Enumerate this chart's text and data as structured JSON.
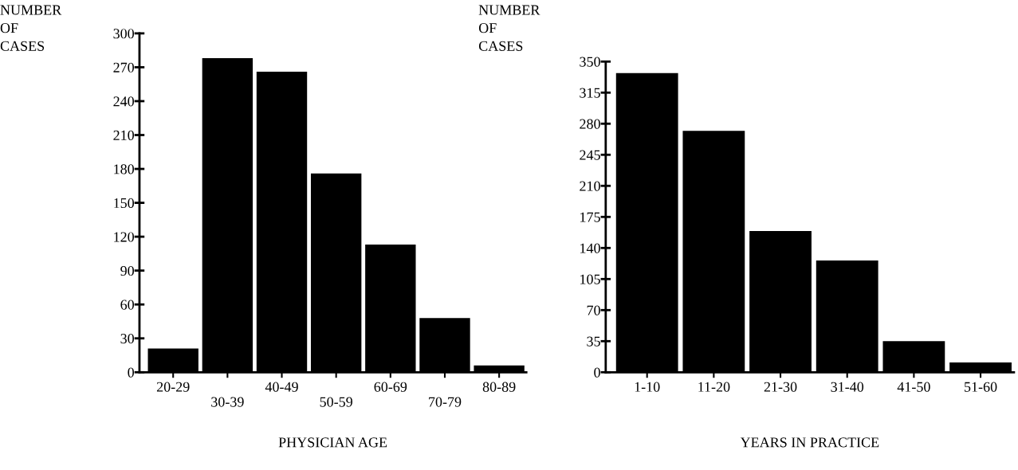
{
  "chart_data": [
    {
      "type": "bar",
      "xlabel": "PHYSICIAN AGE",
      "ylabel": "NUMBER\nOF\nCASES",
      "categories": [
        "20-29",
        "30-39",
        "40-49",
        "50-59",
        "60-69",
        "70-79",
        "80-89"
      ],
      "values": [
        21,
        278,
        266,
        176,
        113,
        48,
        6
      ],
      "color": "#000000",
      "ylim": [
        0,
        300
      ],
      "yticks": [
        0,
        30,
        60,
        90,
        120,
        150,
        180,
        210,
        240,
        270,
        300
      ],
      "grid": false,
      "legend": false
    },
    {
      "type": "bar",
      "xlabel": "YEARS IN PRACTICE",
      "ylabel": "NUMBER\nOF\nCASES",
      "categories": [
        "1-10",
        "11-20",
        "21-30",
        "31-40",
        "41-50",
        "51-60"
      ],
      "values": [
        337,
        272,
        159,
        126,
        35,
        11
      ],
      "color": "#000000",
      "ylim": [
        0,
        350
      ],
      "yticks": [
        0,
        35,
        70,
        105,
        140,
        175,
        210,
        245,
        280,
        315,
        350
      ],
      "grid": false,
      "legend": false
    }
  ]
}
